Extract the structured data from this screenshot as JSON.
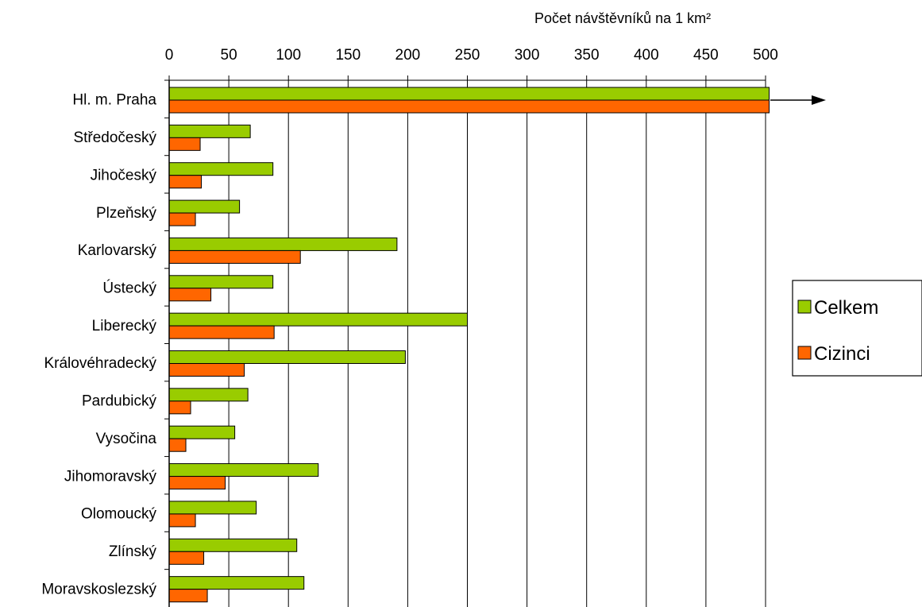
{
  "chart_data": {
    "type": "bar",
    "orientation": "horizontal",
    "xlabel": "Počet návštěvníků na 1 km²",
    "xlim": [
      0,
      500
    ],
    "xticks": [
      0,
      50,
      100,
      150,
      200,
      250,
      300,
      350,
      400,
      450,
      500
    ],
    "x_axis_position": "top",
    "grid": "vertical",
    "legend_position": "right",
    "categories": [
      "Hl. m. Praha",
      "Středočeský",
      "Jihočeský",
      "Plzeňský",
      "Karlovarský",
      "Ústecký",
      "Liberecký",
      "Královéhradecký",
      "Pardubický",
      "Vysočina",
      "Jihomoravský",
      "Olomoucký",
      "Zlínský",
      "Moravskoslezský"
    ],
    "series": [
      {
        "name": "Celkem",
        "color": "#99CC00",
        "values": [
          505,
          68,
          87,
          59,
          191,
          87,
          250,
          198,
          66,
          55,
          125,
          73,
          107,
          113
        ]
      },
      {
        "name": "Cizinci",
        "color": "#FF6600",
        "values": [
          505,
          26,
          27,
          22,
          110,
          35,
          88,
          63,
          18,
          14,
          47,
          22,
          29,
          32
        ]
      }
    ],
    "overflow_indicator": "arrow-right"
  }
}
